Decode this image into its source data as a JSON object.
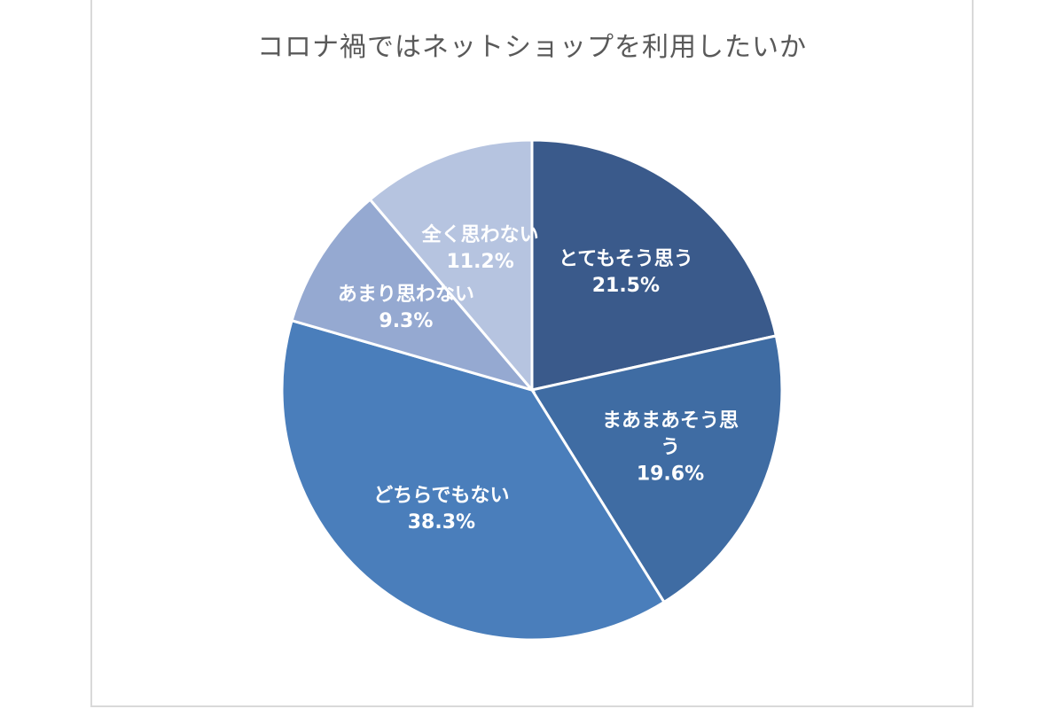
{
  "chart_data": {
    "type": "pie",
    "title": "コロナ禍ではネットショップを利用したいか",
    "start_angle_deg": 0,
    "direction": "clockwise",
    "slices": [
      {
        "label": "とてもそう思う",
        "label_lines": [
          "とてもそう思う"
        ],
        "value": 21.5,
        "value_label": "21.5%",
        "color": "#3a5a8b"
      },
      {
        "label": "まあまあそう思う",
        "label_lines": [
          "まあまあそう思",
          "う"
        ],
        "value": 19.6,
        "value_label": "19.6%",
        "color": "#3f6ca3"
      },
      {
        "label": "どちらでもない",
        "label_lines": [
          "どちらでもない"
        ],
        "value": 38.3,
        "value_label": "38.3%",
        "color": "#4a7ebb"
      },
      {
        "label": "あまり思わない",
        "label_lines": [
          "あまり思わない"
        ],
        "value": 9.3,
        "value_label": "9.3%",
        "color": "#95a9d1"
      },
      {
        "label": "全く思わない",
        "label_lines": [
          "全く思わない"
        ],
        "value": 11.2,
        "value_label": "11.2%",
        "color": "#b6c4e0"
      }
    ],
    "legend": "none",
    "data_labels": "inside"
  }
}
